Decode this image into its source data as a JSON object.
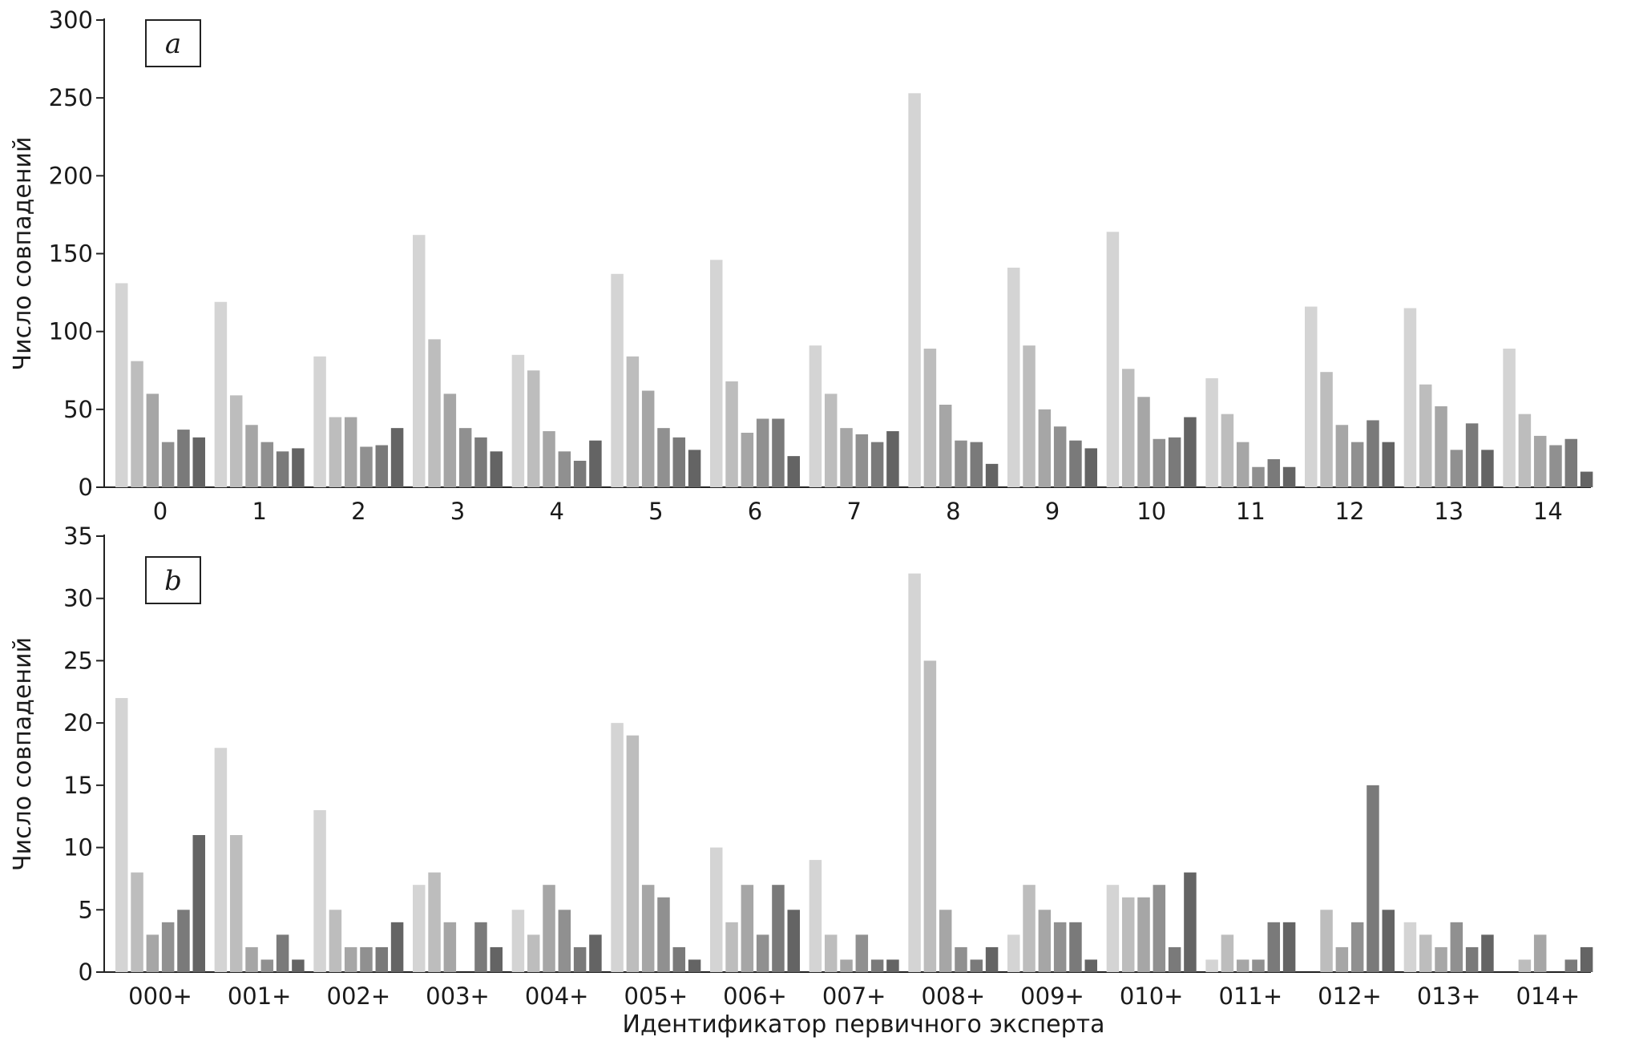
{
  "chart_data": [
    {
      "type": "bar",
      "panel_label": "a",
      "categories": [
        "0",
        "1",
        "2",
        "3",
        "4",
        "5",
        "6",
        "7",
        "8",
        "9",
        "10",
        "11",
        "12",
        "13",
        "14"
      ],
      "ylabel": "Число совпадений",
      "xlabel": "",
      "ylim": [
        0,
        300
      ],
      "yticks": [
        0,
        50,
        100,
        150,
        200,
        250,
        300
      ],
      "grid": false,
      "legend": "none",
      "series": [
        {
          "color": "#d4d4d4",
          "values": [
            131,
            119,
            84,
            162,
            85,
            137,
            146,
            91,
            253,
            141,
            164,
            70,
            116,
            115,
            89
          ]
        },
        {
          "color": "#bdbdbd",
          "values": [
            81,
            59,
            45,
            95,
            75,
            84,
            68,
            60,
            89,
            91,
            76,
            47,
            74,
            66,
            47
          ]
        },
        {
          "color": "#a6a6a6",
          "values": [
            60,
            40,
            45,
            60,
            36,
            62,
            35,
            38,
            53,
            50,
            58,
            29,
            40,
            52,
            33
          ]
        },
        {
          "color": "#909090",
          "values": [
            29,
            29,
            26,
            38,
            23,
            38,
            44,
            34,
            30,
            39,
            31,
            13,
            29,
            24,
            27
          ]
        },
        {
          "color": "#7a7a7a",
          "values": [
            37,
            23,
            27,
            32,
            17,
            32,
            44,
            29,
            29,
            30,
            32,
            18,
            43,
            41,
            31
          ]
        },
        {
          "color": "#646464",
          "values": [
            32,
            25,
            38,
            23,
            30,
            24,
            20,
            36,
            15,
            25,
            45,
            13,
            29,
            24,
            10
          ]
        }
      ]
    },
    {
      "type": "bar",
      "panel_label": "b",
      "categories": [
        "000+",
        "001+",
        "002+",
        "003+",
        "004+",
        "005+",
        "006+",
        "007+",
        "008+",
        "009+",
        "010+",
        "011+",
        "012+",
        "013+",
        "014+"
      ],
      "ylabel": "Число совпадений",
      "xlabel": "Идентификатор первичного эксперта",
      "ylim": [
        0,
        35
      ],
      "yticks": [
        0,
        5,
        10,
        15,
        20,
        25,
        30,
        35
      ],
      "grid": false,
      "legend": "none",
      "series": [
        {
          "color": "#d4d4d4",
          "values": [
            22,
            18,
            13,
            7,
            5,
            20,
            10,
            9,
            32,
            3,
            7,
            1,
            0,
            4,
            0
          ]
        },
        {
          "color": "#bdbdbd",
          "values": [
            8,
            11,
            5,
            8,
            3,
            19,
            4,
            3,
            25,
            7,
            6,
            3,
            5,
            3,
            1
          ]
        },
        {
          "color": "#a6a6a6",
          "values": [
            3,
            2,
            2,
            4,
            7,
            7,
            7,
            1,
            5,
            5,
            6,
            1,
            2,
            2,
            3
          ]
        },
        {
          "color": "#909090",
          "values": [
            4,
            1,
            2,
            0,
            5,
            6,
            3,
            3,
            2,
            4,
            7,
            1,
            4,
            4,
            0
          ]
        },
        {
          "color": "#7a7a7a",
          "values": [
            5,
            3,
            2,
            4,
            2,
            2,
            7,
            1,
            1,
            4,
            2,
            4,
            15,
            2,
            1
          ]
        },
        {
          "color": "#646464",
          "values": [
            11,
            1,
            4,
            2,
            3,
            1,
            5,
            1,
            2,
            1,
            8,
            4,
            5,
            3,
            2
          ]
        }
      ]
    }
  ]
}
